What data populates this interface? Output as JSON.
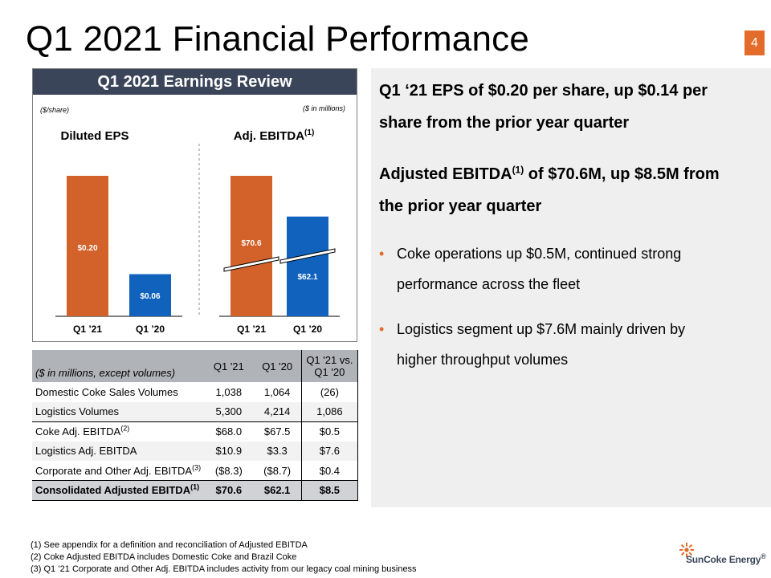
{
  "slide": {
    "title": "Q1 2021 Financial Performance",
    "page_number": "4"
  },
  "earnings_review": {
    "header": "Q1 2021 Earnings Review",
    "eps_unit": "($/share)",
    "ebitda_unit": "($ in millions)"
  },
  "chart_data": [
    {
      "type": "bar",
      "title": "Diluted EPS",
      "categories": [
        "Q1 ’21",
        "Q1 ’20"
      ],
      "values": [
        0.2,
        0.06
      ],
      "data_labels": [
        "$0.20",
        "$0.06"
      ],
      "colors": [
        "#d2622a",
        "#1162bd"
      ],
      "axis_break": false
    },
    {
      "type": "bar",
      "title": "Adj. EBITDA",
      "title_sup": "(1)",
      "categories": [
        "Q1 ’21",
        "Q1 ’20"
      ],
      "values": [
        70.6,
        62.1
      ],
      "data_labels": [
        "$70.6",
        "$62.1"
      ],
      "colors": [
        "#d2622a",
        "#1162bd"
      ],
      "axis_break": true
    }
  ],
  "table": {
    "headers": {
      "label": "($ in millions, except volumes)",
      "q121": "Q1 '21",
      "q120": "Q1 '20",
      "variance_line1": "Q1 '21 vs.",
      "variance_line2": "Q1 '20"
    },
    "rows": [
      {
        "label": "Domestic Coke Sales Volumes",
        "sup": "",
        "q121": "1,038",
        "q120": "1,064",
        "variance": "(26)"
      },
      {
        "label": "Logistics Volumes",
        "sup": "",
        "q121": "5,300",
        "q120": "4,214",
        "variance": "1,086"
      },
      {
        "label": "Coke Adj. EBITDA",
        "sup": "(2)",
        "q121": "$68.0",
        "q120": "$67.5",
        "variance": "$0.5"
      },
      {
        "label": "Logistics Adj. EBITDA",
        "sup": "",
        "q121": "$10.9",
        "q120": "$3.3",
        "variance": "$7.6"
      },
      {
        "label": "Corporate and Other Adj. EBITDA",
        "sup": "(3)",
        "q121": "($8.3)",
        "q120": "($8.7)",
        "variance": "$0.4"
      },
      {
        "label": "Consolidated Adjusted EBITDA",
        "sup": "(1)",
        "q121": "$70.6",
        "q120": "$62.1",
        "variance": "$8.5"
      }
    ]
  },
  "highlights": {
    "eps_line1": "Q1 ‘21 EPS of $0.20 per share, up $0.14 per",
    "eps_line2": "share from the prior year quarter",
    "ebitda_line1_a": "Adjusted EBITDA",
    "ebitda_line1_sup": "(1)",
    "ebitda_line1_b": " of $70.6M, up $8.5M from",
    "ebitda_line2": "the prior year quarter",
    "bullets": [
      {
        "line1": "Coke operations up $0.5M, continued strong",
        "line2": "performance across the fleet"
      },
      {
        "line1": "Logistics segment up $7.6M mainly driven by",
        "line2": "higher throughput volumes"
      }
    ]
  },
  "footnotes": [
    "(1)  See appendix for a definition and reconciliation of Adjusted EBITDA",
    "(2)  Coke Adjusted EBITDA includes Domestic Coke and Brazil Coke",
    "(3)  Q1 ’21 Corporate and Other Adj. EBITDA includes activity from our legacy coal mining business"
  ],
  "logo": {
    "text": "SunCoke Energy",
    "mark": "®",
    "color": "#e46c2a"
  }
}
